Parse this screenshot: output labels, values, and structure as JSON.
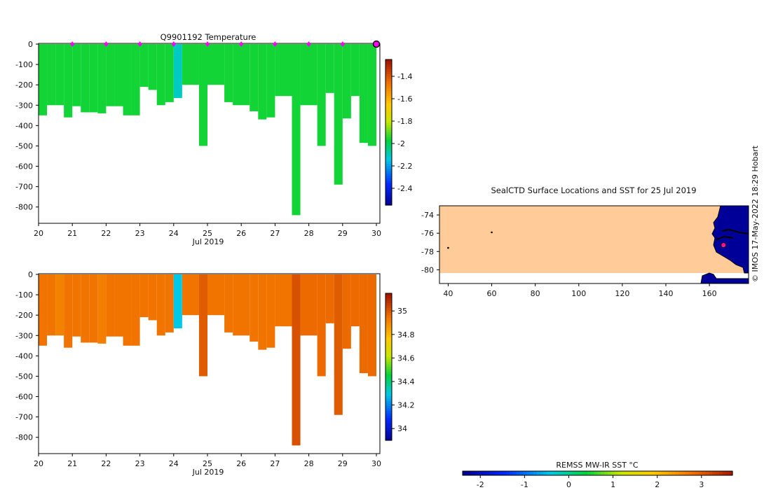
{
  "chart_data": [
    {
      "type": "heatmap",
      "title": "Q9901192  Temperature",
      "xlabel": "Jul 2019",
      "ylabel": "",
      "xlim": [
        20,
        30
      ],
      "ylim": [
        -880,
        0
      ],
      "xticks": [
        20,
        21,
        22,
        23,
        24,
        25,
        26,
        27,
        28,
        29,
        30
      ],
      "yticks": [
        0,
        -100,
        -200,
        -300,
        -400,
        -500,
        -600,
        -700,
        -800
      ],
      "colorbar": {
        "ticks": [
          -1.4,
          -1.6,
          -1.8,
          -2,
          -2.2,
          -2.4
        ],
        "range": [
          -2.55,
          -1.25
        ]
      },
      "profile_markers_x": [
        21,
        22,
        23,
        24,
        25,
        26,
        27,
        28,
        29,
        30
      ],
      "profiles": [
        {
          "t": 20.0,
          "d": 350,
          "v": -1.95
        },
        {
          "t": 20.25,
          "d": 300,
          "v": -1.95
        },
        {
          "t": 20.5,
          "d": 300,
          "v": -1.95
        },
        {
          "t": 20.75,
          "d": 360,
          "v": -1.95
        },
        {
          "t": 21.0,
          "d": 305,
          "v": -1.95
        },
        {
          "t": 21.25,
          "d": 335,
          "v": -1.95
        },
        {
          "t": 21.5,
          "d": 335,
          "v": -1.95
        },
        {
          "t": 21.75,
          "d": 340,
          "v": -1.95
        },
        {
          "t": 22.0,
          "d": 305,
          "v": -1.95
        },
        {
          "t": 22.25,
          "d": 305,
          "v": -1.95
        },
        {
          "t": 22.5,
          "d": 350,
          "v": -1.95
        },
        {
          "t": 22.75,
          "d": 350,
          "v": -1.95
        },
        {
          "t": 23.0,
          "d": 210,
          "v": -1.95
        },
        {
          "t": 23.25,
          "d": 225,
          "v": -1.95
        },
        {
          "t": 23.5,
          "d": 300,
          "v": -1.95
        },
        {
          "t": 23.75,
          "d": 285,
          "v": -1.95
        },
        {
          "t": 24.0,
          "d": 265,
          "v": -2.1
        },
        {
          "t": 24.25,
          "d": 200,
          "v": -1.95
        },
        {
          "t": 24.75,
          "d": 500,
          "v": -1.95
        },
        {
          "t": 25.0,
          "d": 200,
          "v": -1.95
        },
        {
          "t": 25.5,
          "d": 285,
          "v": -1.95
        },
        {
          "t": 25.75,
          "d": 300,
          "v": -1.95
        },
        {
          "t": 26.25,
          "d": 330,
          "v": -1.95
        },
        {
          "t": 26.5,
          "d": 370,
          "v": -1.95
        },
        {
          "t": 26.75,
          "d": 360,
          "v": -1.95
        },
        {
          "t": 27.0,
          "d": 255,
          "v": -1.95
        },
        {
          "t": 27.5,
          "d": 840,
          "v": -1.95
        },
        {
          "t": 27.75,
          "d": 300,
          "v": -1.95
        },
        {
          "t": 28.25,
          "d": 500,
          "v": -1.95
        },
        {
          "t": 28.5,
          "d": 240,
          "v": -1.95
        },
        {
          "t": 28.75,
          "d": 690,
          "v": -1.95
        },
        {
          "t": 29.0,
          "d": 365,
          "v": -1.95
        },
        {
          "t": 29.25,
          "d": 255,
          "v": -1.95
        },
        {
          "t": 29.5,
          "d": 485,
          "v": -1.95
        },
        {
          "t": 29.75,
          "d": 500,
          "v": -1.95
        }
      ]
    },
    {
      "type": "heatmap",
      "title": "",
      "xlabel": "Jul 2019",
      "ylabel": "",
      "xlim": [
        20,
        30
      ],
      "ylim": [
        -880,
        0
      ],
      "xticks": [
        20,
        21,
        22,
        23,
        24,
        25,
        26,
        27,
        28,
        29,
        30
      ],
      "yticks": [
        0,
        -100,
        -200,
        -300,
        -400,
        -500,
        -600,
        -700,
        -800
      ],
      "colorbar": {
        "ticks": [
          35,
          34.8,
          34.6,
          34.4,
          34.2,
          34
        ],
        "range": [
          33.9,
          35.15
        ]
      },
      "profiles": [
        {
          "t": 20.0,
          "d": 350,
          "v": 34.95
        },
        {
          "t": 20.25,
          "d": 300,
          "v": 34.95
        },
        {
          "t": 20.5,
          "d": 300,
          "v": 34.92
        },
        {
          "t": 20.75,
          "d": 360,
          "v": 34.95
        },
        {
          "t": 21.0,
          "d": 305,
          "v": 34.95
        },
        {
          "t": 21.25,
          "d": 335,
          "v": 34.95
        },
        {
          "t": 21.5,
          "d": 335,
          "v": 34.95
        },
        {
          "t": 21.75,
          "d": 340,
          "v": 34.93
        },
        {
          "t": 22.0,
          "d": 305,
          "v": 34.95
        },
        {
          "t": 22.25,
          "d": 305,
          "v": 34.95
        },
        {
          "t": 22.5,
          "d": 350,
          "v": 34.95
        },
        {
          "t": 22.75,
          "d": 350,
          "v": 34.95
        },
        {
          "t": 23.0,
          "d": 210,
          "v": 34.95
        },
        {
          "t": 23.25,
          "d": 225,
          "v": 34.95
        },
        {
          "t": 23.5,
          "d": 300,
          "v": 34.95
        },
        {
          "t": 23.75,
          "d": 285,
          "v": 34.95
        },
        {
          "t": 24.0,
          "d": 265,
          "v": 34.3
        },
        {
          "t": 24.25,
          "d": 200,
          "v": 34.95
        },
        {
          "t": 24.75,
          "d": 500,
          "v": 35.0
        },
        {
          "t": 25.0,
          "d": 200,
          "v": 34.95
        },
        {
          "t": 25.5,
          "d": 285,
          "v": 34.95
        },
        {
          "t": 25.75,
          "d": 300,
          "v": 34.95
        },
        {
          "t": 26.25,
          "d": 330,
          "v": 34.95
        },
        {
          "t": 26.5,
          "d": 370,
          "v": 34.95
        },
        {
          "t": 26.75,
          "d": 360,
          "v": 34.95
        },
        {
          "t": 27.0,
          "d": 255,
          "v": 34.95
        },
        {
          "t": 27.5,
          "d": 840,
          "v": 35.02
        },
        {
          "t": 27.75,
          "d": 300,
          "v": 34.97
        },
        {
          "t": 28.25,
          "d": 500,
          "v": 34.97
        },
        {
          "t": 28.5,
          "d": 240,
          "v": 34.97
        },
        {
          "t": 28.75,
          "d": 690,
          "v": 35.0
        },
        {
          "t": 29.0,
          "d": 365,
          "v": 34.97
        },
        {
          "t": 29.25,
          "d": 255,
          "v": 34.97
        },
        {
          "t": 29.5,
          "d": 485,
          "v": 34.97
        },
        {
          "t": 29.75,
          "d": 500,
          "v": 34.97
        }
      ]
    },
    {
      "type": "scatter",
      "title": "SealCTD Surface Locations and SST for 25 Jul 2019",
      "xlim": [
        36,
        178
      ],
      "ylim": [
        -81.5,
        -73
      ],
      "xticks": [
        40,
        60,
        80,
        100,
        120,
        140,
        160
      ],
      "yticks": [
        -74,
        -76,
        -78,
        -80
      ],
      "points": [
        {
          "x": 40,
          "y": -77.6
        },
        {
          "x": 60,
          "y": -75.9
        },
        {
          "x": 166.5,
          "y": -77.3
        }
      ],
      "colorbar": {
        "label": "REMSS MW-IR SST °C",
        "ticks": [
          -2,
          -1,
          0,
          1,
          2,
          3
        ],
        "range": [
          -2.4,
          3.7
        ]
      }
    }
  ],
  "watermark": "© IMOS 17-May-2022 18:29 Hobart",
  "colors": {
    "axis": "#000000",
    "marker": "#ff00ff",
    "land_fill": "#ffcc99",
    "ice_fill": "#000099"
  }
}
